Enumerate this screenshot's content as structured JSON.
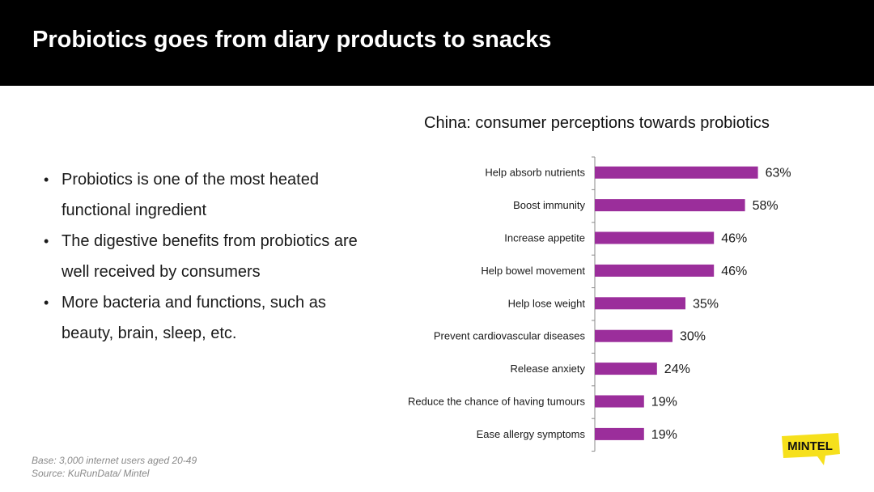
{
  "slide": {
    "title": "Probiotics goes from diary products to snacks",
    "bullets": [
      "Probiotics is one of the most heated functional ingredient",
      "The digestive benefits from probiotics are well received by consumers",
      "More bacteria and functions, such as beauty, brain, sleep, etc."
    ],
    "bullet_symbol": "•",
    "footnote": {
      "base": "Base: 3,000 internet users aged 20-49",
      "source": "Source: KuRunData/ Mintel"
    },
    "logo_text": "MINTEL"
  },
  "colors": {
    "header_bg": "#000000",
    "bar": "#9b2e9b",
    "logo_bg": "#f6e01c",
    "axis": "#8a8a8a"
  },
  "chart_data": {
    "type": "bar",
    "orientation": "horizontal",
    "title": "China: consumer perceptions towards probiotics",
    "categories": [
      "Help absorb nutrients",
      "Boost immunity",
      "Increase appetite",
      "Help bowel movement",
      "Help lose weight",
      "Prevent cardiovascular diseases",
      "Release anxiety",
      "Reduce the chance of having tumours",
      "Ease allergy symptoms"
    ],
    "values": [
      63,
      58,
      46,
      46,
      35,
      30,
      24,
      19,
      19
    ],
    "value_labels": [
      "63%",
      "58%",
      "46%",
      "46%",
      "35%",
      "30%",
      "24%",
      "19%",
      "19%"
    ],
    "unit": "%",
    "xlim": [
      0,
      100
    ],
    "grid": false,
    "legend": "none"
  }
}
